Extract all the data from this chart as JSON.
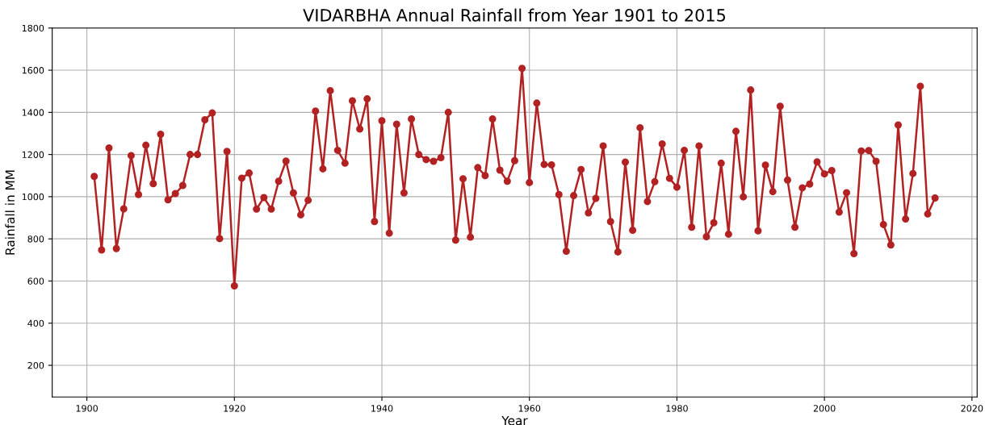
{
  "chart_data": {
    "type": "line",
    "title": "VIDARBHA Annual Rainfall from Year 1901 to 2015",
    "xlabel": "Year",
    "ylabel": "Rainfall in MM",
    "x": [
      1901,
      1902,
      1903,
      1904,
      1905,
      1906,
      1907,
      1908,
      1909,
      1910,
      1911,
      1912,
      1913,
      1914,
      1915,
      1916,
      1917,
      1918,
      1919,
      1920,
      1921,
      1922,
      1923,
      1924,
      1925,
      1926,
      1927,
      1928,
      1929,
      1930,
      1931,
      1932,
      1933,
      1934,
      1935,
      1936,
      1937,
      1938,
      1939,
      1940,
      1941,
      1942,
      1943,
      1944,
      1945,
      1946,
      1947,
      1948,
      1949,
      1950,
      1951,
      1952,
      1953,
      1954,
      1955,
      1956,
      1957,
      1958,
      1959,
      1960,
      1961,
      1962,
      1963,
      1964,
      1965,
      1966,
      1967,
      1968,
      1969,
      1970,
      1971,
      1972,
      1973,
      1974,
      1975,
      1976,
      1977,
      1978,
      1979,
      1980,
      1981,
      1982,
      1983,
      1984,
      1985,
      1986,
      1987,
      1988,
      1989,
      1990,
      1991,
      1992,
      1993,
      1994,
      1995,
      1996,
      1997,
      1998,
      1999,
      2000,
      2001,
      2002,
      2003,
      2004,
      2005,
      2006,
      2007,
      2008,
      2009,
      2010,
      2011,
      2012,
      2013,
      2014,
      2015
    ],
    "series": [
      {
        "color": "#b22222",
        "values": [
          1096,
          747,
          1231,
          754,
          942,
          1195,
          1010,
          1244,
          1062,
          1296,
          985,
          1015,
          1053,
          1200,
          1200,
          1365,
          1397,
          801,
          1215,
          577,
          1088,
          1112,
          941,
          996,
          941,
          1073,
          1169,
          1018,
          914,
          983,
          1406,
          1132,
          1503,
          1220,
          1159,
          1455,
          1321,
          1464,
          882,
          1360,
          827,
          1344,
          1018,
          1369,
          1200,
          1176,
          1168,
          1185,
          1400,
          794,
          1085,
          808,
          1138,
          1100,
          1369,
          1126,
          1073,
          1171,
          1609,
          1067,
          1444,
          1153,
          1151,
          1010,
          741,
          1005,
          1129,
          923,
          992,
          1241,
          882,
          738,
          1164,
          841,
          1327,
          977,
          1071,
          1250,
          1087,
          1045,
          1220,
          855,
          1241,
          810,
          876,
          1159,
          822,
          1310,
          999,
          1506,
          838,
          1150,
          1024,
          1429,
          1079,
          855,
          1042,
          1060,
          1165,
          1108,
          1124,
          927,
          1019,
          730,
          1217,
          1219,
          1168,
          868,
          771,
          1340,
          894,
          1110,
          1524,
          918,
          994
        ]
      }
    ],
    "xlim": [
      1895.3,
      2020.7
    ],
    "xticks": [
      1900,
      1920,
      1940,
      1960,
      1980,
      2000,
      2020
    ],
    "ylim": [
      50,
      1800
    ],
    "yticks": [
      200,
      400,
      600,
      800,
      1000,
      1200,
      1400,
      1600,
      1800
    ],
    "grid": true,
    "marker": "circle",
    "line_style": "solid"
  }
}
